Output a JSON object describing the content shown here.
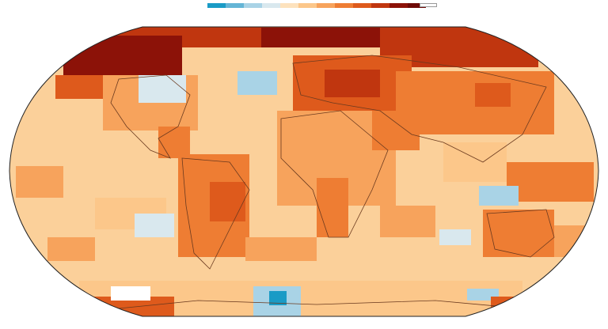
{
  "legend": {
    "colors": [
      "#1a9bc6",
      "#64b5d6",
      "#a9d3e6",
      "#d9e8ee",
      "#fde2bd",
      "#fcc78a",
      "#f7a35c",
      "#ee7d33",
      "#de5a1c",
      "#c0360f",
      "#8c1208",
      "#6e0a07"
    ],
    "nodata_color": "#ffffff"
  },
  "map": {
    "projection": "robinson",
    "background_color": "#fbd09a",
    "outline_color": "#222222",
    "coastline_color": "#6b3a1f",
    "palette": {
      "warm1": "#fde2bd",
      "warm2": "#fcc78a",
      "warm3": "#f7a35c",
      "warm4": "#ee7d33",
      "warm5": "#de5a1c",
      "warm6": "#c0360f",
      "warm7": "#8c1208",
      "cool1": "#d9e8ee",
      "cool2": "#a9d3e6",
      "cool3": "#64b5d6",
      "cool4": "#1a9bc6"
    }
  }
}
